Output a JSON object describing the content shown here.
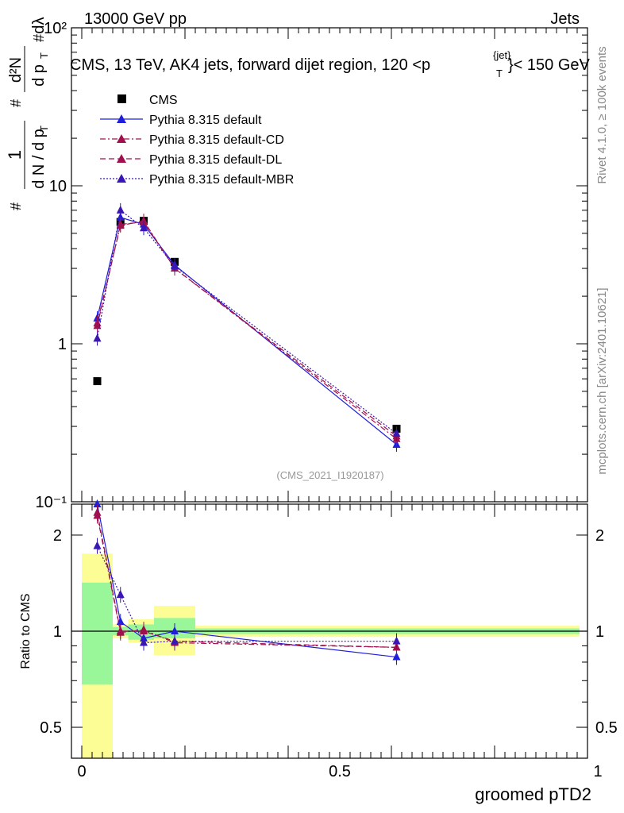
{
  "header": {
    "left": "13000 GeV pp",
    "right": "Jets"
  },
  "side_labels": {
    "rivet": "Rivet 4.1.0, ≥ 100k events",
    "mcplots": "mcplots.cern.ch [arXiv:2401.10621]"
  },
  "chart_data": [
    {
      "type": "scatter",
      "panel": "main",
      "title": "CMS, 13 TeV, AK4 jets, forward dijet region, 120 <p",
      "title_sup": "{jet}",
      "title_sub": "T",
      "title_tail": "}< 150 GeV",
      "ylabel": "1/(dN/dp_T) d²N/(dp_T dλ)",
      "yscale": "log",
      "ylim": [
        0.1,
        100
      ],
      "ytick_labels": [
        "10⁻¹",
        "1",
        "10",
        "10²"
      ],
      "ytick_values": [
        0.1,
        1,
        10,
        100
      ],
      "xlim": [
        0,
        1
      ],
      "watermark": "(CMS_2021_I1920187)",
      "legend_position": "top-left",
      "x": [
        0.03,
        0.075,
        0.12,
        0.18,
        0.61
      ],
      "series": [
        {
          "name": "CMS",
          "values": [
            0.58,
            5.9,
            6.0,
            3.3,
            0.29
          ],
          "color": "#000000",
          "marker": "square",
          "line": "none"
        },
        {
          "name": "Pythia 8.315 default",
          "values": [
            1.45,
            6.3,
            5.7,
            3.15,
            0.23
          ],
          "color": "#1e1edc",
          "marker": "triangle",
          "line": "solid"
        },
        {
          "name": "Pythia 8.315 default-CD",
          "values": [
            1.35,
            5.6,
            6.0,
            3.0,
            0.25
          ],
          "color": "#a0104e",
          "marker": "triangle",
          "line": "dashdot"
        },
        {
          "name": "Pythia 8.315 default-DL",
          "values": [
            1.3,
            5.7,
            5.9,
            3.0,
            0.26
          ],
          "color": "#a0104e",
          "marker": "triangle",
          "line": "dashed"
        },
        {
          "name": "Pythia 8.315 default-MBR",
          "values": [
            1.08,
            7.0,
            5.4,
            3.1,
            0.27
          ],
          "color": "#3a16b4",
          "marker": "triangle",
          "line": "dotted"
        }
      ]
    },
    {
      "type": "scatter",
      "panel": "ratio",
      "ylabel": "Ratio to CMS",
      "xlabel": "groomed pTD2",
      "yscale": "log",
      "ylim": [
        0.4,
        2.5
      ],
      "ytick_labels": [
        "0.5",
        "1",
        "2"
      ],
      "ytick_values": [
        0.5,
        1,
        2
      ],
      "xlim": [
        0,
        1
      ],
      "xtick_labels": [
        "0",
        "0.5",
        "1"
      ],
      "xtick_values": [
        0,
        0.5,
        1
      ],
      "x": [
        0.03,
        0.075,
        0.12,
        0.18,
        0.61
      ],
      "bands": {
        "bins": [
          [
            0.0,
            0.06
          ],
          [
            0.06,
            0.09
          ],
          [
            0.09,
            0.14
          ],
          [
            0.14,
            0.22
          ],
          [
            0.22,
            1.0
          ]
        ],
        "green": [
          [
            0.68,
            1.42
          ],
          [
            0.97,
            1.03
          ],
          [
            0.94,
            1.05
          ],
          [
            0.95,
            1.1
          ],
          [
            0.98,
            1.02
          ]
        ],
        "yellow": [
          [
            0.4,
            1.75
          ],
          [
            0.95,
            1.05
          ],
          [
            0.92,
            1.09
          ],
          [
            0.84,
            1.2
          ],
          [
            0.96,
            1.04
          ]
        ]
      },
      "series": [
        {
          "name": "Pythia 8.315 default",
          "values": [
            2.5,
            1.07,
            0.95,
            1.0,
            0.83
          ],
          "color": "#1e1edc",
          "line": "solid"
        },
        {
          "name": "Pythia 8.315 default-CD",
          "values": [
            2.3,
            0.99,
            1.01,
            0.92,
            0.89
          ],
          "color": "#a0104e",
          "line": "dashdot"
        },
        {
          "name": "Pythia 8.315 default-DL",
          "values": [
            2.35,
            1.0,
            1.0,
            0.93,
            0.89
          ],
          "color": "#a0104e",
          "line": "dashed"
        },
        {
          "name": "Pythia 8.315 default-MBR",
          "values": [
            1.85,
            1.3,
            0.92,
            0.93,
            0.93
          ],
          "color": "#3a16b4",
          "line": "dotted"
        }
      ]
    }
  ]
}
